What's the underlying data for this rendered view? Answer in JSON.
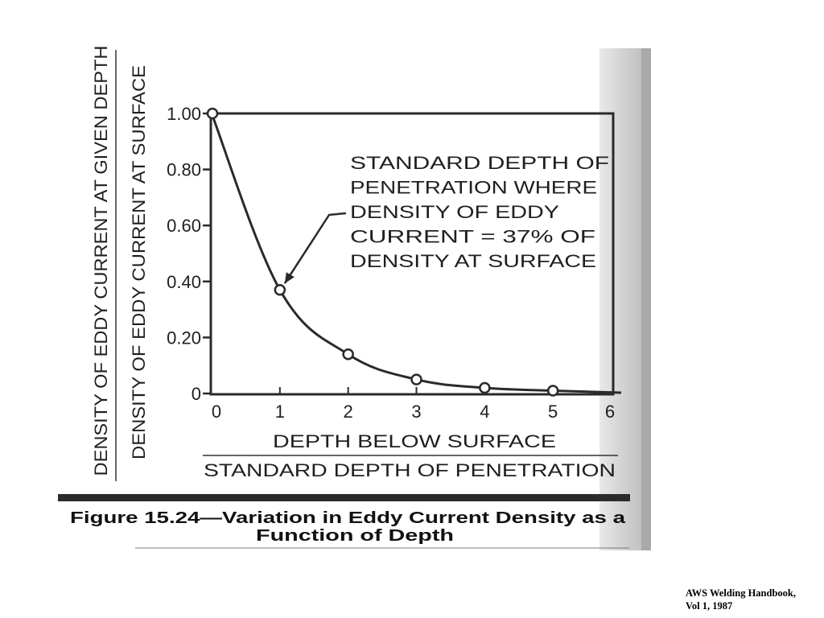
{
  "chart_data": {
    "type": "line",
    "xlabel_numerator": "DEPTH BELOW SURFACE",
    "xlabel_denominator": "STANDARD DEPTH OF PENETRATION",
    "ylabel_numerator": "DENSITY OF EDDY CURRENT AT GIVEN DEPTH",
    "ylabel_denominator": "DENSITY OF EDDY CURRENT AT SURFACE",
    "x_ticks": [
      "0",
      "1",
      "2",
      "3",
      "4",
      "5",
      "6"
    ],
    "y_ticks": [
      "0",
      "0.20",
      "0.40",
      "0.60",
      "0.80",
      "1.00"
    ],
    "xlim": [
      0,
      6
    ],
    "ylim": [
      0,
      1.0
    ],
    "grid": false,
    "series": [
      {
        "x": [
          0,
          1,
          2,
          3,
          4,
          5
        ],
        "y": [
          1.0,
          0.37,
          0.14,
          0.05,
          0.02,
          0.01
        ],
        "markers": "open-circle"
      }
    ],
    "annotation": {
      "lines": [
        "STANDARD DEPTH OF",
        "PENETRATION WHERE",
        "DENSITY OF EDDY",
        "CURRENT = 37% OF",
        "DENSITY AT SURFACE"
      ],
      "points_to": {
        "x": 1,
        "y": 0.37
      }
    },
    "caption_lines": [
      "Figure 15.24—Variation in Eddy Current Density as a",
      "Function of Depth"
    ]
  },
  "credit_lines": [
    "AWS Welding Handbook,",
    "Vol 1, 1987"
  ]
}
